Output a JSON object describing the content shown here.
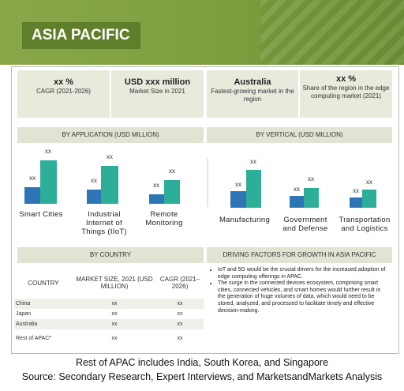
{
  "header": {
    "title": "ASIA PACIFIC"
  },
  "stats": [
    {
      "value": "xx %",
      "label": "CAGR (2021-2026)"
    },
    {
      "value": "USD xxx million",
      "label": "Market Size in 2021"
    },
    {
      "value": "Australia",
      "label": "Fastest-growing market in the region"
    },
    {
      "value": "xx %",
      "label": "Share of the region in the edge computing market (2021)"
    }
  ],
  "by_application": {
    "title": "BY APPLICATION (USD MILLION)",
    "categories": [
      "Smart Cities",
      "Industrial Internet of Things (IIoT)",
      "Remote Monitoring"
    ],
    "labels": [
      "xx",
      "xx",
      "xx",
      "xx",
      "xx",
      "xx"
    ]
  },
  "by_vertical": {
    "title": "BY VERTICAL (USD MILLION)",
    "categories": [
      "Manufacturing",
      "Government and Defense",
      "Transportation and Logistics"
    ],
    "labels": [
      "xx",
      "xx",
      "xx",
      "xx",
      "xx",
      "xx"
    ]
  },
  "by_country": {
    "title": "BY COUNTRY",
    "header": [
      "COUNTRY",
      "MARKET SIZE, 2021 (USD MILLION)",
      "CAGR (2021–2026)"
    ],
    "rows": [
      [
        "China",
        "xx",
        "xx"
      ],
      [
        "Japan",
        "xx",
        "xx"
      ],
      [
        "Australia",
        "xx",
        "xx"
      ],
      [
        "Rest of APAC*",
        "xx",
        "xx"
      ]
    ]
  },
  "driving_factors": {
    "title": "DRIVING FACTORS FOR GROWTH IN ASIA PACIFIC",
    "items": [
      "IoT and 5G would be the crucial drivers for the increased adoption of edge computing offerings in APAC.",
      "The surge in the connected devices ecosystem, comprising smart cities, connected vehicles, and smart homes would further result in the generation of huge volumes of data, which would need to be stored, analyzed, and processed to facilitate timely and effective decision-making."
    ]
  },
  "footer": {
    "note": "Rest of APAC includes India, South Korea, and Singapore",
    "source": "Source: Secondary Research, Expert Interviews, and MarketsandMarkets Analysis"
  }
}
